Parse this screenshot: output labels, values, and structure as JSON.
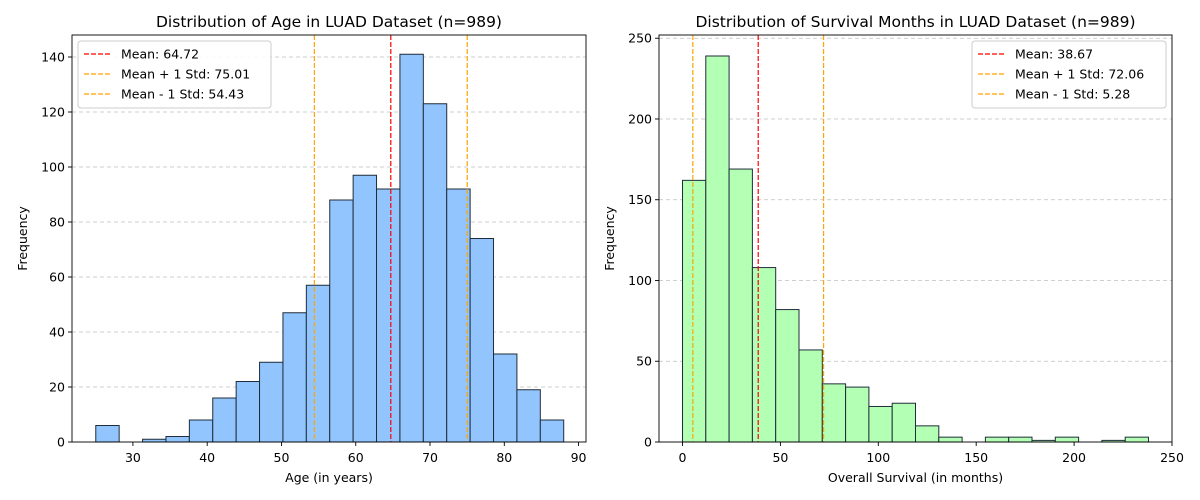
{
  "chart_data": [
    {
      "type": "bar",
      "title": "Distribution of Age in LUAD Dataset (n=989)",
      "xlabel": "Age (in years)",
      "ylabel": "Frequency",
      "xlim": [
        21.8,
        91.0
      ],
      "ylim": [
        0,
        148
      ],
      "xticks": [
        30,
        40,
        50,
        60,
        70,
        80,
        90
      ],
      "yticks": [
        0,
        20,
        40,
        60,
        80,
        100,
        120,
        140
      ],
      "grid": "y-dashed",
      "legend_position": "top-left",
      "bar_color": "#92c5fd",
      "bin_edges": [
        25,
        28.15,
        31.3,
        34.45,
        37.6,
        40.75,
        43.9,
        47.05,
        50.2,
        53.35,
        56.5,
        59.65,
        62.8,
        65.95,
        69.1,
        72.25,
        75.4,
        78.55,
        81.7,
        84.85,
        88
      ],
      "values": [
        6,
        0,
        1,
        2,
        8,
        16,
        22,
        29,
        47,
        57,
        88,
        97,
        92,
        141,
        123,
        92,
        74,
        32,
        19,
        8
      ],
      "vlines": [
        {
          "label": "Mean: 64.72",
          "x": 64.72,
          "color": "#ff0000"
        },
        {
          "label": "Mean + 1 Std: 75.01",
          "x": 75.01,
          "color": "#ffa500"
        },
        {
          "label": "Mean - 1 Std: 54.43",
          "x": 54.43,
          "color": "#ffa500"
        }
      ]
    },
    {
      "type": "bar",
      "title": "Distribution of Survival Months in LUAD Dataset (n=989)",
      "xlabel": "Overall Survival (in months)",
      "ylabel": "Frequency",
      "xlim": [
        -12,
        250
      ],
      "ylim": [
        0,
        252
      ],
      "xticks": [
        0,
        50,
        100,
        150,
        200,
        250
      ],
      "yticks": [
        0,
        50,
        100,
        150,
        200,
        250
      ],
      "grid": "y-dashed",
      "legend_position": "top-right",
      "bar_color": "#b3ffb3",
      "bin_edges": [
        0,
        11.9,
        23.8,
        35.7,
        47.6,
        59.5,
        71.4,
        83.3,
        95.2,
        107.1,
        119,
        130.9,
        142.8,
        154.7,
        166.6,
        178.5,
        190.4,
        202.3,
        214.2,
        226.1,
        238
      ],
      "values": [
        162,
        239,
        169,
        108,
        82,
        57,
        36,
        34,
        22,
        24,
        10,
        3,
        0,
        3,
        3,
        1,
        3,
        0,
        1,
        3
      ],
      "vlines": [
        {
          "label": "Mean: 38.67",
          "x": 38.67,
          "color": "#ff0000"
        },
        {
          "label": "Mean + 1 Std: 72.06",
          "x": 72.06,
          "color": "#ffa500"
        },
        {
          "label": "Mean - 1 Std: 5.28",
          "x": 5.28,
          "color": "#ffa500"
        }
      ]
    }
  ]
}
